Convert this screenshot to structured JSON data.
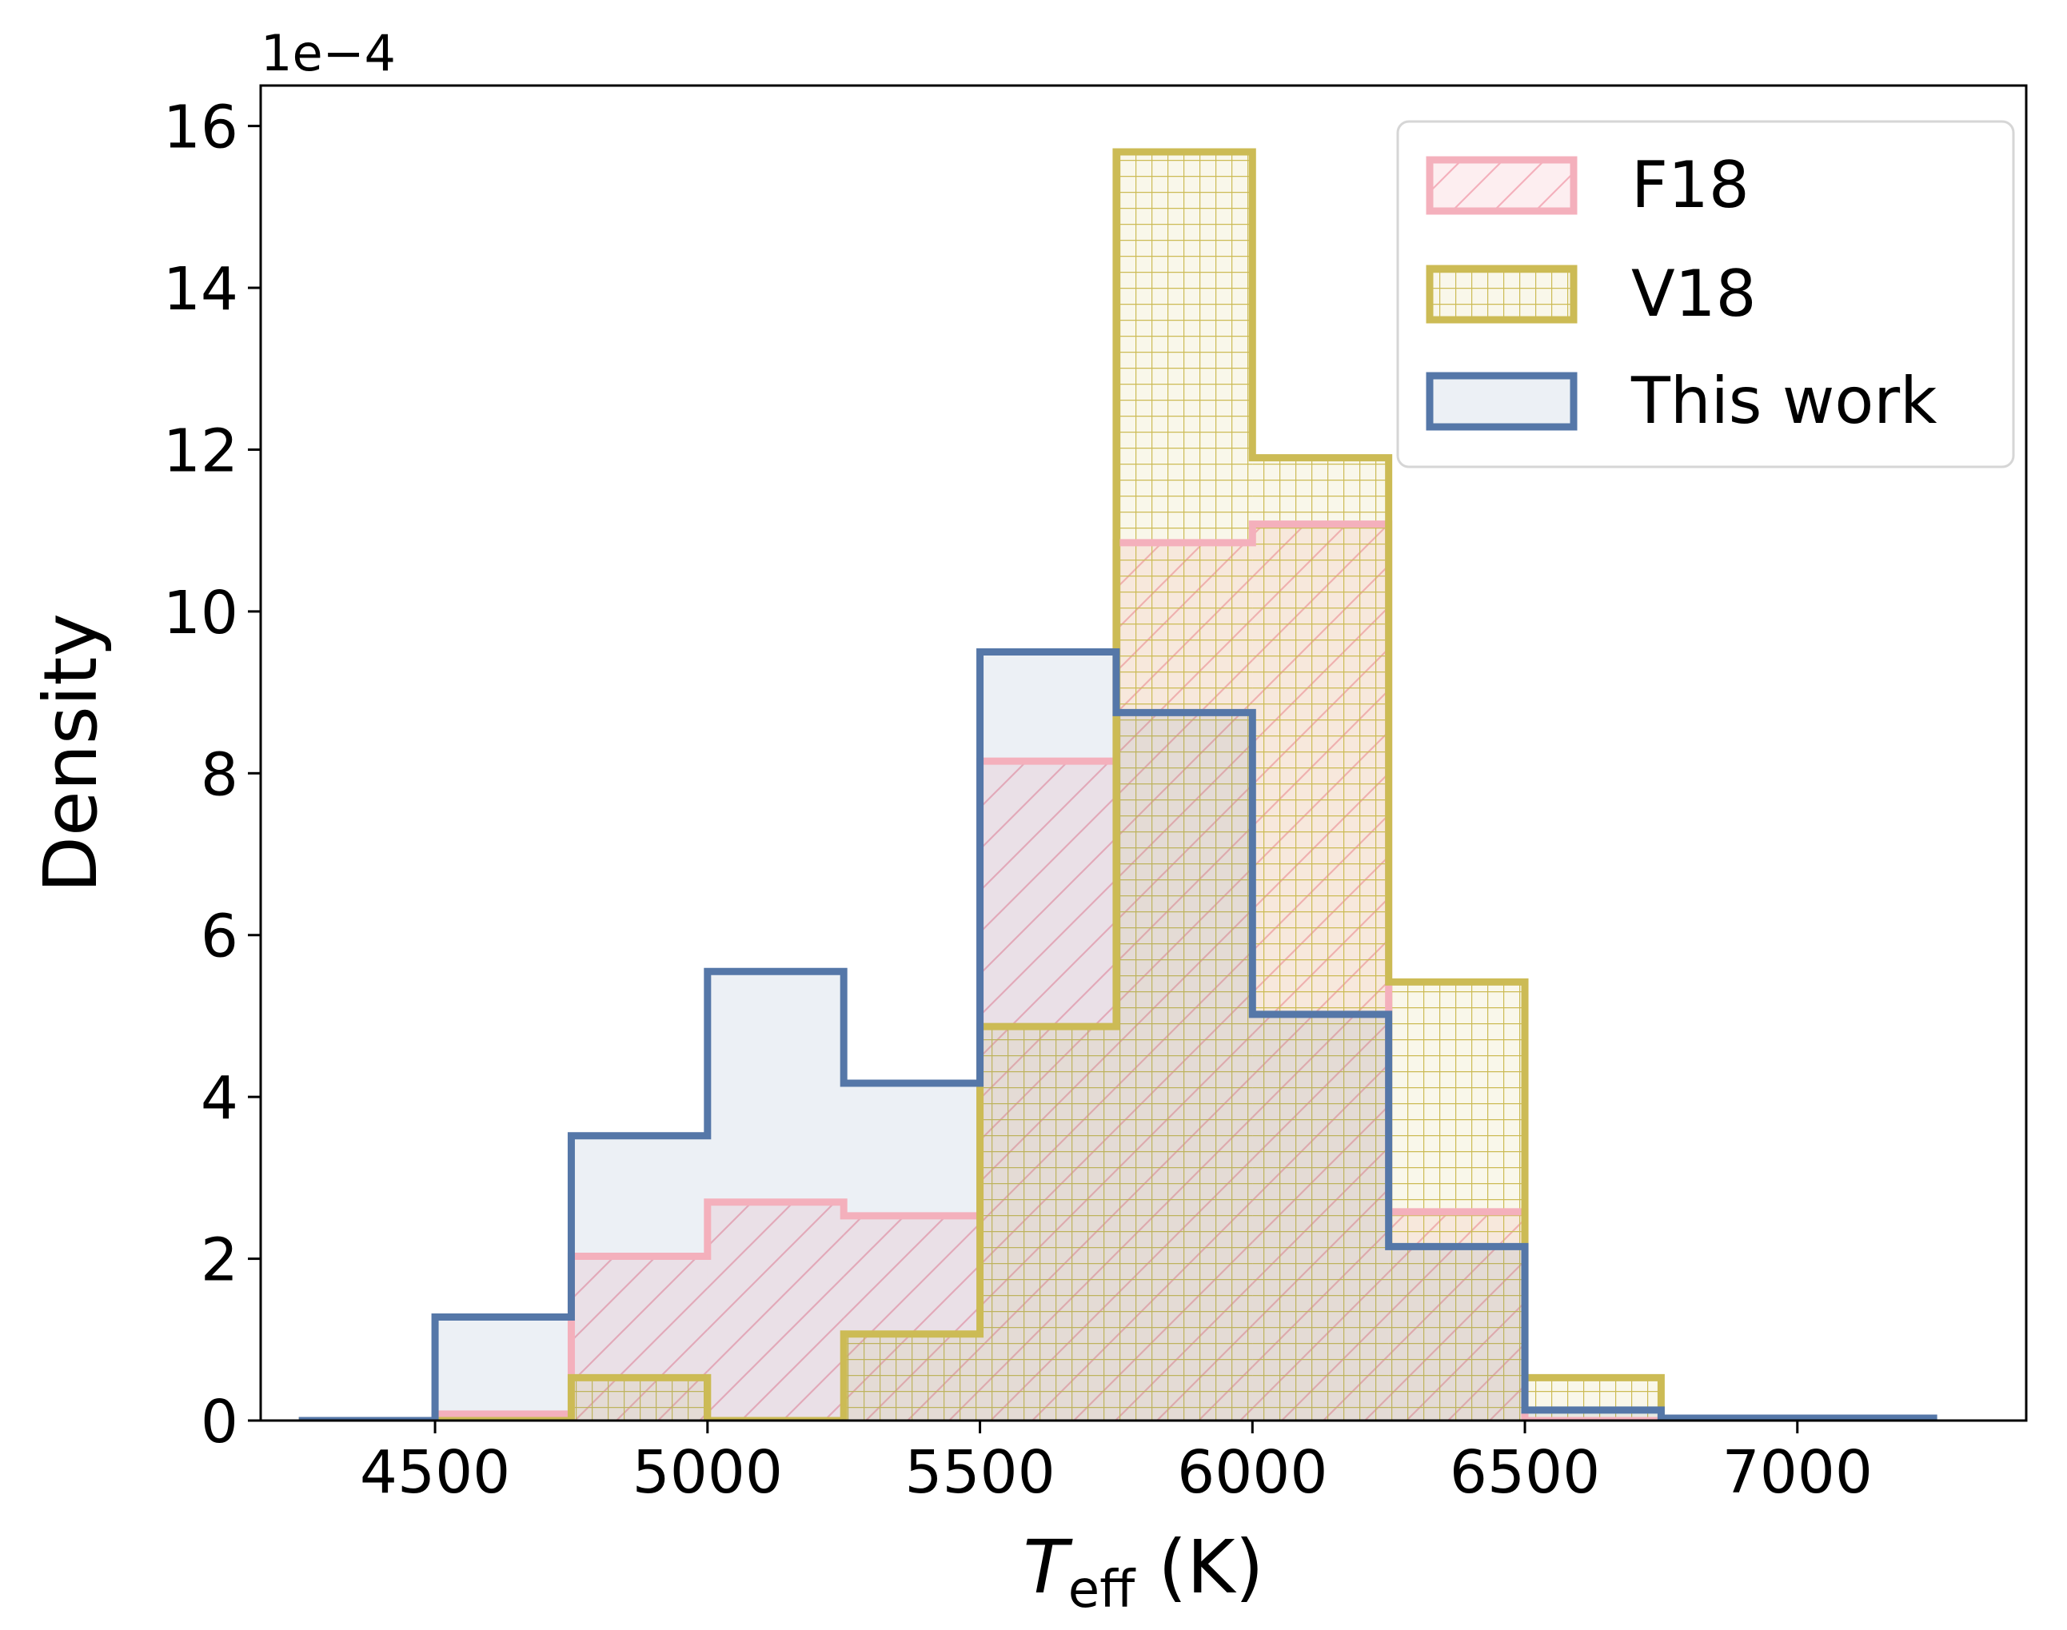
{
  "chart_data": {
    "type": "histogram",
    "title": "",
    "xlabel_main": "T",
    "xlabel_sub": "eff",
    "xlabel_unit": " (K)",
    "ylabel": "Density",
    "y_offset_label": "1e−4",
    "xlim": [
      4180,
      7420
    ],
    "ylim": [
      0,
      16.5
    ],
    "y_scale_note": "values are in units of 1e-4",
    "xticks": [
      4500,
      5000,
      5500,
      6000,
      6500,
      7000
    ],
    "xtick_labels": [
      "4500",
      "5000",
      "5500",
      "6000",
      "6500",
      "7000"
    ],
    "yticks": [
      0,
      2,
      4,
      6,
      8,
      10,
      12,
      14,
      16
    ],
    "ytick_labels": [
      "0",
      "2",
      "4",
      "6",
      "8",
      "10",
      "12",
      "14",
      "16"
    ],
    "bin_edges": [
      4250,
      4500,
      4750,
      5000,
      5250,
      5500,
      5750,
      6000,
      6250,
      6500,
      6750,
      7000,
      7250
    ],
    "series": [
      {
        "name": "F18",
        "color": "#f4b0bc",
        "hatch": "diagonal",
        "values": [
          0.0,
          0.08,
          2.03,
          2.7,
          2.53,
          8.15,
          10.85,
          11.08,
          2.58,
          0.0,
          0.0,
          0.0
        ]
      },
      {
        "name": "V18",
        "color": "#ccbb55",
        "hatch": "grid",
        "values": [
          0.0,
          0.0,
          0.53,
          0.0,
          1.07,
          4.87,
          15.68,
          11.9,
          5.42,
          0.53,
          0.0,
          0.0
        ]
      },
      {
        "name": "This work",
        "color": "#5577a8",
        "hatch": "none",
        "values": [
          0.0,
          1.28,
          3.52,
          5.55,
          4.17,
          9.5,
          8.75,
          5.02,
          2.15,
          0.13,
          0.03,
          0.03
        ]
      }
    ],
    "legend": {
      "location": "upper right",
      "entries": [
        "F18",
        "V18",
        "This work"
      ]
    }
  }
}
